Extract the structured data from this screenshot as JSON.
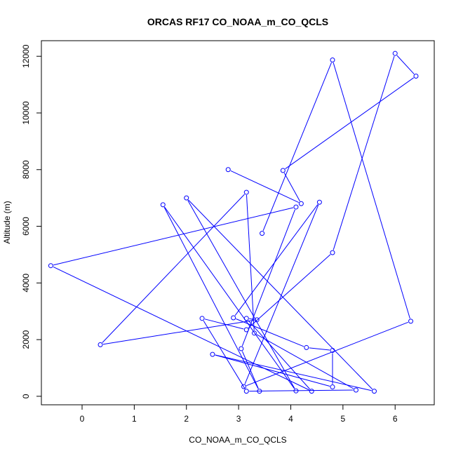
{
  "chart_data": {
    "type": "line",
    "title": "ORCAS RF17 CO_NOAA_m_CO_QCLS",
    "xlabel": "CO_NOAA_m_CO_QCLS",
    "ylabel": "Altitude (m)",
    "xlim": [
      -0.78,
      6.75
    ],
    "ylim": [
      -300,
      12550
    ],
    "xticks": [
      "0",
      "1",
      "2",
      "3",
      "4",
      "5",
      "6"
    ],
    "yticks": [
      "0",
      "2000",
      "4000",
      "6000",
      "8000",
      "10000",
      "12000"
    ],
    "series_color": "#0000ff",
    "series": [
      {
        "markers": "open-circle",
        "x": [
          3.45,
          4.8,
          6.3,
          3.1,
          4.55,
          2.9,
          4.3,
          4.8,
          4.8,
          2.5,
          5.6,
          2.0,
          4.1,
          1.55,
          3.4,
          3.05,
          4.1,
          -0.6,
          4.4,
          3.15,
          3.35,
          0.35,
          3.15,
          3.3,
          5.25,
          3.15,
          2.3,
          3.15,
          4.8,
          6.0,
          6.4,
          3.85,
          4.2,
          2.8
        ],
        "y": [
          5750,
          11870,
          2650,
          340,
          6850,
          2770,
          1720,
          1620,
          330,
          1480,
          180,
          7000,
          190,
          6760,
          180,
          1680,
          6680,
          4610,
          180,
          2750,
          2700,
          1820,
          7200,
          2230,
          220,
          180,
          2750,
          2350,
          5070,
          12100,
          11300,
          7970,
          6800,
          8000
        ]
      }
    ]
  }
}
